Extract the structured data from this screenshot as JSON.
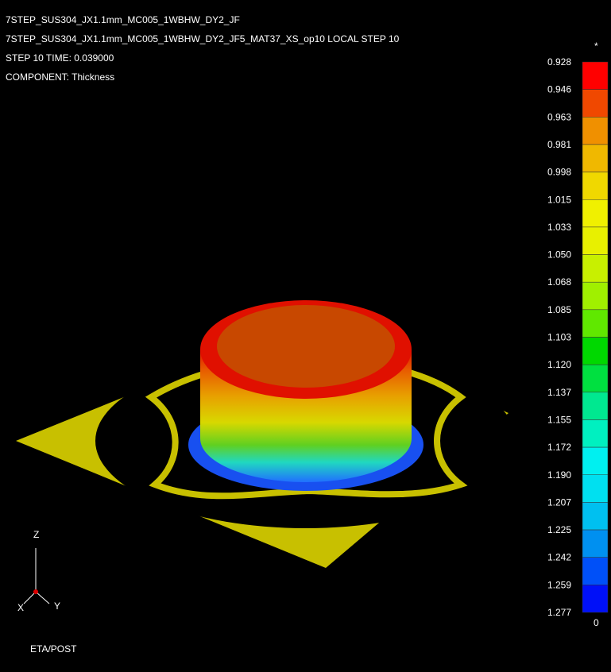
{
  "header": {
    "lines": [
      "7STEP_SUS304_JX1.1mm_MC005_1WBHW_DY2_JF",
      "7STEP_SUS304_JX1.1mm_MC005_1WBHW_DY2_JF5_MAT37_XS_op10  LOCAL STEP 10",
      "STEP 10    TIME:     0.039000",
      "COMPONENT: Thickness"
    ]
  },
  "legend": {
    "top_marker": "*",
    "bottom_marker": "0",
    "labels": [
      "0.928",
      "0.946",
      "0.963",
      "0.981",
      "0.998",
      "1.015",
      "1.033",
      "1.050",
      "1.068",
      "1.085",
      "1.103",
      "1.120",
      "1.137",
      "1.155",
      "1.172",
      "1.190",
      "1.207",
      "1.225",
      "1.242",
      "1.259",
      "1.277"
    ]
  },
  "axes": {
    "z": "Z",
    "x": "X",
    "y": "Y"
  },
  "footer": "ETA/POST"
}
